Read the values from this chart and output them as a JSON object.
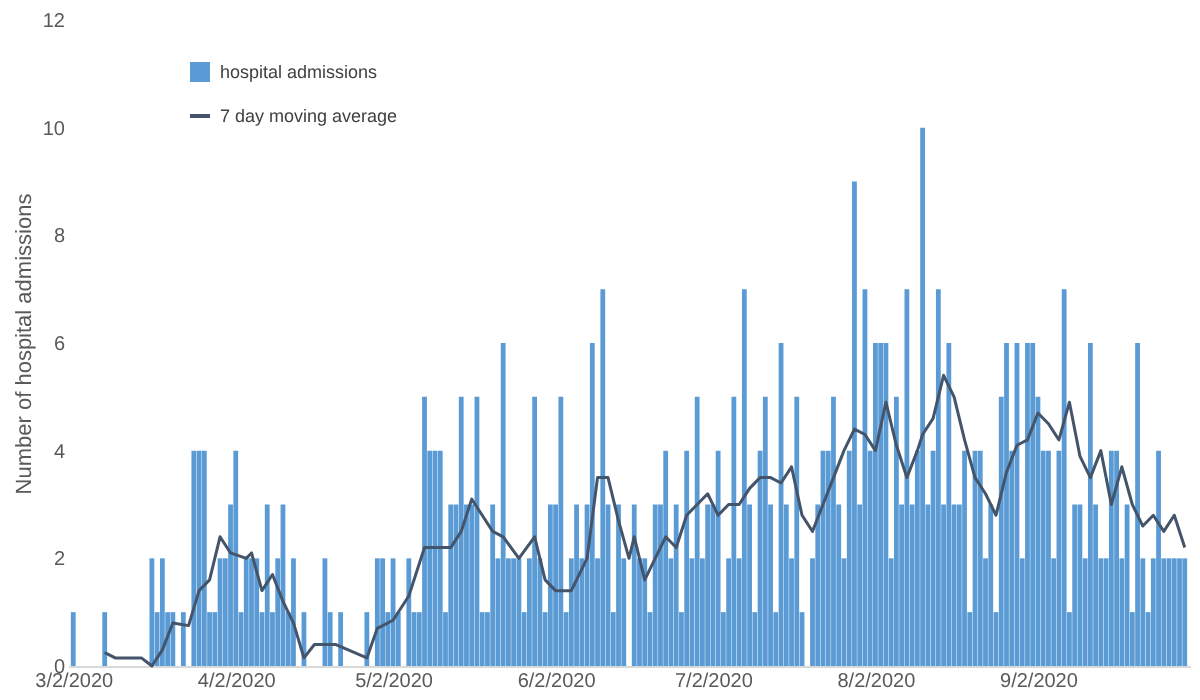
{
  "chart_data": {
    "type": "bar",
    "ylabel": "Number of hospital admissions",
    "xlim": [
      "2020-03-01",
      "2020-10-01"
    ],
    "xticks": [
      {
        "value": "2020-03-02",
        "label": "3/2/2020"
      },
      {
        "value": "2020-04-02",
        "label": "4/2/2020"
      },
      {
        "value": "2020-05-02",
        "label": "5/2/2020"
      },
      {
        "value": "2020-06-02",
        "label": "6/2/2020"
      },
      {
        "value": "2020-07-02",
        "label": "7/2/2020"
      },
      {
        "value": "2020-08-02",
        "label": "8/2/2020"
      },
      {
        "value": "2020-09-02",
        "label": "9/2/2020"
      }
    ],
    "ylim": [
      0,
      12
    ],
    "yticks": [
      0,
      2,
      4,
      6,
      8,
      10,
      12
    ],
    "grid": false,
    "legend": "top left",
    "series": [
      {
        "name": "hospital admissions",
        "color": "#5b9bd5",
        "x": [
          "2020-03-02",
          "2020-03-03",
          "2020-03-04",
          "2020-03-05",
          "2020-03-06",
          "2020-03-07",
          "2020-03-08",
          "2020-03-09",
          "2020-03-10",
          "2020-03-11",
          "2020-03-12",
          "2020-03-13",
          "2020-03-14",
          "2020-03-15",
          "2020-03-16",
          "2020-03-17",
          "2020-03-18",
          "2020-03-19",
          "2020-03-20",
          "2020-03-21",
          "2020-03-22",
          "2020-03-23",
          "2020-03-24",
          "2020-03-25",
          "2020-03-26",
          "2020-03-27",
          "2020-03-28",
          "2020-03-29",
          "2020-03-30",
          "2020-03-31",
          "2020-04-01",
          "2020-04-02",
          "2020-04-03",
          "2020-04-04",
          "2020-04-05",
          "2020-04-06",
          "2020-04-07",
          "2020-04-08",
          "2020-04-09",
          "2020-04-10",
          "2020-04-11",
          "2020-04-12",
          "2020-04-13",
          "2020-04-14",
          "2020-04-15",
          "2020-04-16",
          "2020-04-17",
          "2020-04-18",
          "2020-04-19",
          "2020-04-20",
          "2020-04-21",
          "2020-04-22",
          "2020-04-23",
          "2020-04-24",
          "2020-04-25",
          "2020-04-26",
          "2020-04-27",
          "2020-04-28",
          "2020-04-29",
          "2020-04-30",
          "2020-05-01",
          "2020-05-02",
          "2020-05-03",
          "2020-05-04",
          "2020-05-05",
          "2020-05-06",
          "2020-05-07",
          "2020-05-08",
          "2020-05-09",
          "2020-05-10",
          "2020-05-11",
          "2020-05-12",
          "2020-05-13",
          "2020-05-14",
          "2020-05-15",
          "2020-05-16",
          "2020-05-17",
          "2020-05-18",
          "2020-05-19",
          "2020-05-20",
          "2020-05-21",
          "2020-05-22",
          "2020-05-23",
          "2020-05-24",
          "2020-05-25",
          "2020-05-26",
          "2020-05-27",
          "2020-05-28",
          "2020-05-29",
          "2020-05-30",
          "2020-05-31",
          "2020-06-01",
          "2020-06-02",
          "2020-06-03",
          "2020-06-04",
          "2020-06-05",
          "2020-06-06",
          "2020-06-07",
          "2020-06-08",
          "2020-06-09",
          "2020-06-10",
          "2020-06-11",
          "2020-06-12",
          "2020-06-13",
          "2020-06-14",
          "2020-06-15",
          "2020-06-16",
          "2020-06-17",
          "2020-06-18",
          "2020-06-19",
          "2020-06-20",
          "2020-06-21",
          "2020-06-22",
          "2020-06-23",
          "2020-06-24",
          "2020-06-25",
          "2020-06-26",
          "2020-06-27",
          "2020-06-28",
          "2020-06-29",
          "2020-06-30",
          "2020-07-01",
          "2020-07-02",
          "2020-07-03",
          "2020-07-04",
          "2020-07-05",
          "2020-07-06",
          "2020-07-07",
          "2020-07-08",
          "2020-07-09",
          "2020-07-10",
          "2020-07-11",
          "2020-07-12",
          "2020-07-13",
          "2020-07-14",
          "2020-07-15",
          "2020-07-16",
          "2020-07-17",
          "2020-07-18",
          "2020-07-19",
          "2020-07-20",
          "2020-07-21",
          "2020-07-22",
          "2020-07-23",
          "2020-07-24",
          "2020-07-25",
          "2020-07-26",
          "2020-07-27",
          "2020-07-28",
          "2020-07-29",
          "2020-07-30",
          "2020-07-31",
          "2020-08-01",
          "2020-08-02",
          "2020-08-03",
          "2020-08-04",
          "2020-08-05",
          "2020-08-06",
          "2020-08-07",
          "2020-08-08",
          "2020-08-09",
          "2020-08-10",
          "2020-08-11",
          "2020-08-12",
          "2020-08-13",
          "2020-08-14",
          "2020-08-15",
          "2020-08-16",
          "2020-08-17",
          "2020-08-18",
          "2020-08-19",
          "2020-08-20",
          "2020-08-21",
          "2020-08-22",
          "2020-08-23",
          "2020-08-24",
          "2020-08-25",
          "2020-08-26",
          "2020-08-27",
          "2020-08-28",
          "2020-08-29",
          "2020-08-30",
          "2020-08-31",
          "2020-09-01",
          "2020-09-02",
          "2020-09-03",
          "2020-09-04",
          "2020-09-05",
          "2020-09-06",
          "2020-09-07",
          "2020-09-08",
          "2020-09-09",
          "2020-09-10",
          "2020-09-11",
          "2020-09-12",
          "2020-09-13",
          "2020-09-14",
          "2020-09-15",
          "2020-09-16",
          "2020-09-17",
          "2020-09-18",
          "2020-09-19",
          "2020-09-20",
          "2020-09-21",
          "2020-09-22",
          "2020-09-23",
          "2020-09-24",
          "2020-09-25",
          "2020-09-26",
          "2020-09-27",
          "2020-09-28",
          "2020-09-29",
          "2020-09-30"
        ],
        "values": [
          1,
          0,
          0,
          0,
          0,
          0,
          1,
          0,
          0,
          0,
          0,
          0,
          0,
          0,
          0,
          2,
          1,
          2,
          1,
          1,
          0,
          1,
          0,
          4,
          4,
          4,
          1,
          1,
          2,
          2,
          3,
          4,
          1,
          2,
          2,
          2,
          1,
          3,
          1,
          2,
          3,
          1,
          2,
          0,
          1,
          0,
          0,
          0,
          2,
          1,
          0,
          1,
          0,
          0,
          0,
          0,
          1,
          0,
          2,
          2,
          1,
          2,
          1,
          0,
          2,
          1,
          1,
          5,
          4,
          4,
          4,
          1,
          3,
          3,
          5,
          3,
          3,
          5,
          1,
          1,
          3,
          2,
          6,
          2,
          2,
          2,
          1,
          2,
          5,
          2,
          1,
          3,
          3,
          5,
          1,
          2,
          3,
          2,
          3,
          6,
          2,
          7,
          3,
          1,
          3,
          2,
          0,
          3,
          2,
          2,
          1,
          3,
          3,
          4,
          2,
          3,
          1,
          4,
          2,
          5,
          2,
          3,
          3,
          4,
          1,
          2,
          5,
          2,
          7,
          3,
          1,
          4,
          5,
          3,
          1,
          6,
          3,
          2,
          5,
          1,
          0,
          2,
          3,
          4,
          4,
          5,
          3,
          2,
          4,
          9,
          3,
          7,
          4,
          6,
          6,
          6,
          2,
          5,
          3,
          7,
          3,
          4,
          10,
          3,
          4,
          7,
          3,
          6,
          3,
          3,
          4,
          1,
          4,
          4,
          2,
          3,
          1,
          5,
          6,
          4,
          6,
          2,
          6,
          6,
          5,
          4,
          4,
          2,
          4,
          7,
          1,
          3,
          3,
          2,
          6,
          3,
          2,
          2,
          4,
          4,
          2,
          3,
          1,
          6,
          2,
          1,
          2,
          4,
          2,
          2,
          2,
          2,
          2
        ]
      },
      {
        "name": "7 day moving average",
        "type": "line",
        "color": "#44546a",
        "marker": "none",
        "line_style": "solid",
        "x": [
          "2020-03-08",
          "2020-03-10",
          "2020-03-15",
          "2020-03-17",
          "2020-03-19",
          "2020-03-21",
          "2020-03-24",
          "2020-03-26",
          "2020-03-28",
          "2020-03-30",
          "2020-04-01",
          "2020-04-04",
          "2020-04-05",
          "2020-04-07",
          "2020-04-09",
          "2020-04-11",
          "2020-04-13",
          "2020-04-15",
          "2020-04-17",
          "2020-04-21",
          "2020-04-27",
          "2020-04-29",
          "2020-05-02",
          "2020-05-05",
          "2020-05-08",
          "2020-05-11",
          "2020-05-13",
          "2020-05-15",
          "2020-05-17",
          "2020-05-19",
          "2020-05-21",
          "2020-05-23",
          "2020-05-26",
          "2020-05-29",
          "2020-05-31",
          "2020-06-02",
          "2020-06-05",
          "2020-06-08",
          "2020-06-10",
          "2020-06-12",
          "2020-06-14",
          "2020-06-16",
          "2020-06-17",
          "2020-06-19",
          "2020-06-21",
          "2020-06-23",
          "2020-06-25",
          "2020-06-27",
          "2020-06-29",
          "2020-07-01",
          "2020-07-03",
          "2020-07-05",
          "2020-07-07",
          "2020-07-09",
          "2020-07-11",
          "2020-07-13",
          "2020-07-15",
          "2020-07-17",
          "2020-07-19",
          "2020-07-21",
          "2020-07-23",
          "2020-07-25",
          "2020-07-27",
          "2020-07-29",
          "2020-07-31",
          "2020-08-02",
          "2020-08-04",
          "2020-08-06",
          "2020-08-08",
          "2020-08-10",
          "2020-08-11",
          "2020-08-13",
          "2020-08-15",
          "2020-08-17",
          "2020-08-19",
          "2020-08-21",
          "2020-08-23",
          "2020-08-25",
          "2020-08-27",
          "2020-08-29",
          "2020-08-31",
          "2020-09-02",
          "2020-09-04",
          "2020-09-06",
          "2020-09-08",
          "2020-09-10",
          "2020-09-12",
          "2020-09-14",
          "2020-09-16",
          "2020-09-18",
          "2020-09-20",
          "2020-09-22",
          "2020-09-24",
          "2020-09-26",
          "2020-09-28",
          "2020-09-30"
        ],
        "values": [
          0.25,
          0.15,
          0.15,
          0,
          0.3,
          0.8,
          0.75,
          1.4,
          1.6,
          2.4,
          2.1,
          2.0,
          2.1,
          1.4,
          1.7,
          1.2,
          0.8,
          0.15,
          0.4,
          0.4,
          0.15,
          0.7,
          0.85,
          1.3,
          2.2,
          2.2,
          2.2,
          2.5,
          3.1,
          2.8,
          2.5,
          2.4,
          2.0,
          2.4,
          1.6,
          1.4,
          1.4,
          2.0,
          3.5,
          3.5,
          2.7,
          2.0,
          2.4,
          1.6,
          2.0,
          2.4,
          2.2,
          2.8,
          3.0,
          3.2,
          2.8,
          3.0,
          3.0,
          3.3,
          3.5,
          3.5,
          3.4,
          3.7,
          2.8,
          2.5,
          3.0,
          3.5,
          4.0,
          4.4,
          4.3,
          4.0,
          4.9,
          4.1,
          3.5,
          4.0,
          4.3,
          4.6,
          5.4,
          5.0,
          4.2,
          3.5,
          3.2,
          2.8,
          3.6,
          4.1,
          4.2,
          4.7,
          4.5,
          4.2,
          4.9,
          3.9,
          3.5,
          4.0,
          3.0,
          3.7,
          3.0,
          2.6,
          2.8,
          2.5,
          2.8,
          2.2
        ]
      }
    ]
  }
}
